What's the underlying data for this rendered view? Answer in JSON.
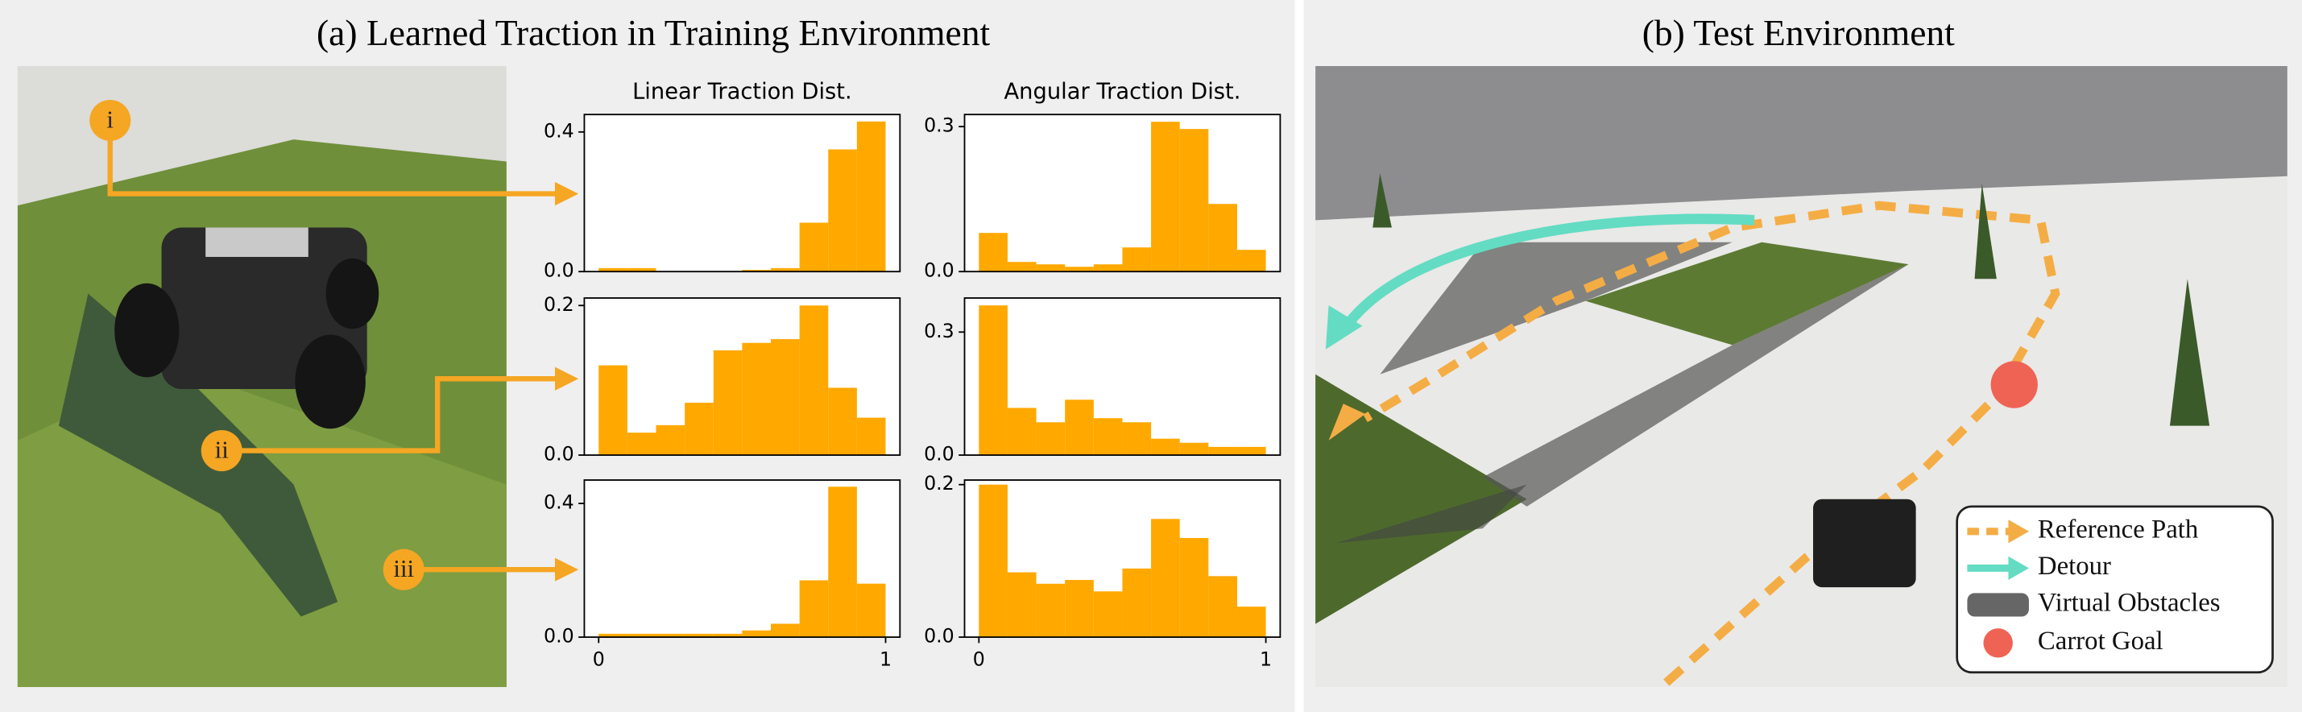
{
  "panel_a": {
    "title": "(a) Learned Traction in Training Environment"
  },
  "panel_b": {
    "title": "(b) Test Environment",
    "legend": [
      "Reference Path",
      "Detour",
      "Virtual Obstacles",
      "Carrot Goal"
    ]
  },
  "labels": [
    "i",
    "ii",
    "iii"
  ],
  "chart_data": [
    {
      "type": "histogram",
      "title": "Linear Traction Dist.",
      "color": "#ffa800",
      "bins": [
        0,
        0.1,
        0.2,
        0.3,
        0.4,
        0.5,
        0.6,
        0.7,
        0.8,
        0.9,
        1.0
      ],
      "values": [
        0.01,
        0.01,
        0,
        0,
        0,
        0.005,
        0.01,
        0.14,
        0.35,
        0.43
      ],
      "xlim": [
        -0.05,
        1.05
      ],
      "ylim": [
        0,
        0.45
      ],
      "yticks": [
        {
          "value": 0,
          "label": "0.0"
        },
        0.4
      ]
    },
    {
      "type": "histogram",
      "title": "Angular Traction Dist.",
      "color": "#ffa800",
      "bins": [
        0,
        0.1,
        0.2,
        0.3,
        0.4,
        0.5,
        0.6,
        0.7,
        0.8,
        0.9,
        1.0
      ],
      "values": [
        0.08,
        0.02,
        0.015,
        0.01,
        0.015,
        0.05,
        0.31,
        0.295,
        0.14,
        0.045
      ],
      "xlim": [
        -0.05,
        1.05
      ],
      "ylim": [
        0,
        0.325
      ],
      "yticks": [
        {
          "value": 0,
          "label": "0.0"
        },
        0.3
      ]
    },
    {
      "type": "histogram",
      "color": "#ffa800",
      "bins": [
        0,
        0.1,
        0.2,
        0.3,
        0.4,
        0.5,
        0.6,
        0.7,
        0.8,
        0.9,
        1.0
      ],
      "values": [
        0.12,
        0.03,
        0.04,
        0.07,
        0.14,
        0.15,
        0.155,
        0.2,
        0.09,
        0.05
      ],
      "xlim": [
        -0.05,
        1.05
      ],
      "ylim": [
        0,
        0.21
      ],
      "yticks": [
        {
          "value": 0,
          "label": "0.0"
        },
        0.2
      ]
    },
    {
      "type": "histogram",
      "color": "#ffa800",
      "bins": [
        0,
        0.1,
        0.2,
        0.3,
        0.4,
        0.5,
        0.6,
        0.7,
        0.8,
        0.9,
        1.0
      ],
      "values": [
        0.365,
        0.115,
        0.08,
        0.135,
        0.09,
        0.08,
        0.04,
        0.03,
        0.02,
        0.02
      ],
      "xlim": [
        -0.05,
        1.05
      ],
      "ylim": [
        0,
        0.383
      ],
      "yticks": [
        {
          "value": 0,
          "label": "0.0"
        },
        0.3
      ]
    },
    {
      "type": "histogram",
      "color": "#ffa800",
      "bins": [
        0,
        0.1,
        0.2,
        0.3,
        0.4,
        0.5,
        0.6,
        0.7,
        0.8,
        0.9,
        1.0
      ],
      "values": [
        0.01,
        0.01,
        0.01,
        0.01,
        0.01,
        0.02,
        0.04,
        0.17,
        0.45,
        0.16
      ],
      "xlim": [
        -0.05,
        1.05
      ],
      "ylim": [
        0,
        0.47
      ],
      "yticks": [
        {
          "value": 0,
          "label": "0.0"
        },
        0.4
      ],
      "xticks": [
        0,
        1
      ]
    },
    {
      "type": "histogram",
      "color": "#ffa800",
      "bins": [
        0,
        0.1,
        0.2,
        0.3,
        0.4,
        0.5,
        0.6,
        0.7,
        0.8,
        0.9,
        1.0
      ],
      "values": [
        0.2,
        0.085,
        0.07,
        0.075,
        0.06,
        0.09,
        0.155,
        0.13,
        0.08,
        0.04
      ],
      "xlim": [
        -0.05,
        1.05
      ],
      "ylim": [
        0,
        0.206
      ],
      "yticks": [
        {
          "value": 0,
          "label": "0.0"
        },
        0.2
      ],
      "xticks": [
        0,
        1
      ]
    }
  ]
}
